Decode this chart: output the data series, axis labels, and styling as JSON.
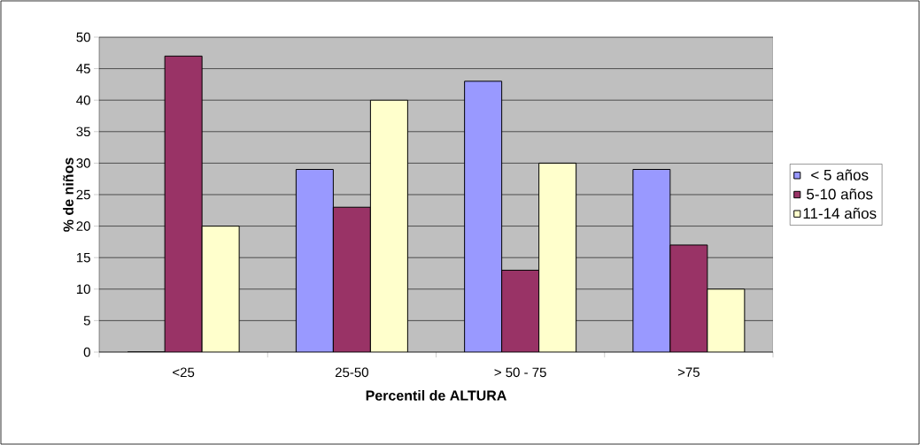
{
  "chart_data": {
    "type": "bar",
    "xlabel": "Percentil de ALTURA",
    "ylabel": "% de niños",
    "categories": [
      "<25",
      "25-50",
      "> 50 - 75",
      ">75"
    ],
    "series": [
      {
        "name": "< 5 años",
        "color": "#9999ff",
        "values": [
          0,
          29,
          43,
          29
        ]
      },
      {
        "name": "5-10 años",
        "color": "#993366",
        "values": [
          47,
          23,
          13,
          17
        ]
      },
      {
        "name": "11-14 años",
        "color": "#ffffcc",
        "values": [
          20,
          40,
          30,
          10
        ]
      }
    ],
    "ylim": [
      0,
      50
    ],
    "yticks": [
      0,
      5,
      10,
      15,
      20,
      25,
      30,
      35,
      40,
      45,
      50
    ],
    "grid": "y",
    "legend": "right"
  }
}
